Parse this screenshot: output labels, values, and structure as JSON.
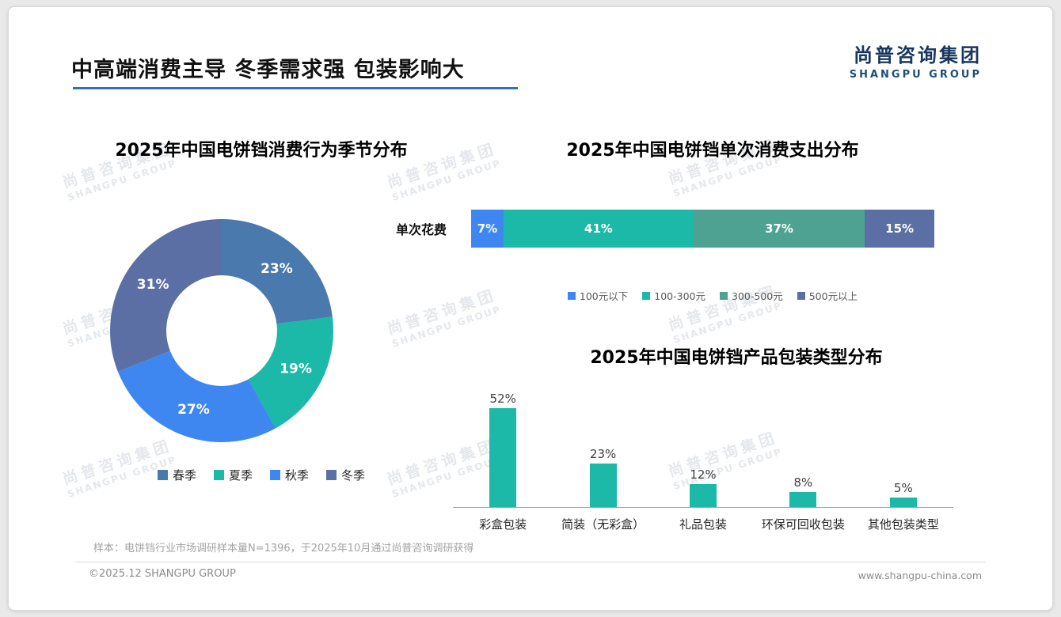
{
  "header": {
    "title": "中高端消费主导 冬季需求强 包装影响大",
    "logo_cn": "尚普咨询集团",
    "logo_en": "SHANGPU GROUP"
  },
  "watermark": {
    "line1": "尚普咨询集团",
    "line2": "SHANGPU GROUP"
  },
  "chart_data": [
    {
      "type": "pie",
      "variant": "donut",
      "title": "2025年中国电饼铛消费行为季节分布",
      "legend_position": "bottom",
      "segments": [
        {
          "label": "春季",
          "value": 23,
          "color": "#4a79ae"
        },
        {
          "label": "夏季",
          "value": 19,
          "color": "#1cb8a8"
        },
        {
          "label": "秋季",
          "value": 27,
          "color": "#3f87f0"
        },
        {
          "label": "冬季",
          "value": 31,
          "color": "#5b6fa5"
        }
      ]
    },
    {
      "type": "bar",
      "variant": "horizontal-stacked",
      "title": "2025年中国电饼铛单次消费支出分布",
      "row_label": "单次花费",
      "legend_position": "bottom",
      "segments": [
        {
          "label": "100元以下",
          "value": 7,
          "color": "#3f87f0"
        },
        {
          "label": "100-300元",
          "value": 41,
          "color": "#1cb8a8"
        },
        {
          "label": "300-500元",
          "value": 37,
          "color": "#4da291"
        },
        {
          "label": "500元以上",
          "value": 15,
          "color": "#5b6fa5"
        }
      ]
    },
    {
      "type": "bar",
      "variant": "vertical",
      "title": "2025年中国电饼铛产品包装类型分布",
      "categories": [
        "彩盒包装",
        "简装（无彩盒）",
        "礼品包装",
        "环保可回收包装",
        "其他包装类型"
      ],
      "values": [
        52,
        23,
        12,
        8,
        5
      ],
      "value_suffix": "%",
      "bar_color": "#1cb8a8",
      "ylim": [
        0,
        60
      ],
      "grid": false
    }
  ],
  "footnote": "样本：电饼铛行业市场调研样本量N=1396，于2025年10月通过尚普咨询调研获得",
  "footer": {
    "left": "©2025.12 SHANGPU GROUP",
    "right": "www.shangpu-china.com"
  }
}
